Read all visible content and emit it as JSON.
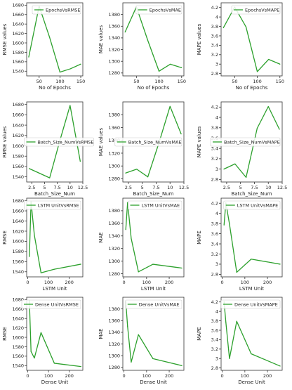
{
  "colors": {
    "line": "#2ca02c",
    "axis": "#333333",
    "background": "#ffffff"
  },
  "chart_data": [
    {
      "type": "line",
      "legend": "EpochsVsRMSE",
      "legend_position": "top-right",
      "xlabel": "No of Epochs",
      "ylabel": "RMSE values",
      "x": [
        25,
        50,
        75,
        100,
        125,
        150
      ],
      "y": [
        1570,
        1678,
        1612,
        1538,
        1545,
        1555
      ],
      "xlim": [
        20,
        155
      ],
      "ylim": [
        1530,
        1685
      ],
      "xticks": [
        50,
        100,
        150
      ],
      "yticks": [
        1540,
        1560,
        1580,
        1600,
        1620,
        1640,
        1660,
        1680
      ]
    },
    {
      "type": "line",
      "legend": "EpochsVsMAE",
      "legend_position": "top-right",
      "xlabel": "No of Epochs",
      "ylabel": "MAE values",
      "x": [
        25,
        50,
        75,
        100,
        125,
        150
      ],
      "y": [
        1350,
        1393,
        1336,
        1283,
        1295,
        1289
      ],
      "xlim": [
        20,
        155
      ],
      "ylim": [
        1275,
        1400
      ],
      "xticks": [
        50,
        100,
        150
      ],
      "yticks": [
        1280,
        1300,
        1320,
        1340,
        1360,
        1380
      ]
    },
    {
      "type": "line",
      "legend": "EpochsVsMAPE",
      "legend_position": "top-right",
      "xlabel": "No of Epochs",
      "ylabel": "MAPE values",
      "x": [
        25,
        50,
        75,
        100,
        125,
        150
      ],
      "y": [
        3.77,
        4.21,
        3.79,
        2.84,
        3.1,
        3.0
      ],
      "xlim": [
        20,
        155
      ],
      "ylim": [
        2.75,
        4.3
      ],
      "xticks": [
        50,
        100,
        150
      ],
      "yticks": [
        2.8,
        3.0,
        3.2,
        3.4,
        3.6,
        3.8,
        4.0,
        4.2
      ]
    },
    {
      "type": "line",
      "legend": "Batch_Size_NumVsRMSE",
      "legend_position": "center",
      "xlabel": "Batch_Size_Num",
      "ylabel": "RMSE values",
      "x": [
        2,
        4,
        6,
        8,
        10,
        12
      ],
      "y": [
        1556,
        1547,
        1538,
        1610,
        1678,
        1570
      ],
      "xlim": [
        1.5,
        12.5
      ],
      "ylim": [
        1530,
        1685
      ],
      "xticks": [
        2.5,
        5.0,
        7.5,
        10.0,
        12.5
      ],
      "yticks": [
        1540,
        1560,
        1580,
        1600,
        1620,
        1640,
        1660,
        1680
      ]
    },
    {
      "type": "line",
      "legend": "Batch_Size_NumVsMAE",
      "legend_position": "center-right",
      "xlabel": "Batch_Size_Num",
      "ylabel": "MAE values",
      "x": [
        2,
        4,
        6,
        8,
        10,
        12
      ],
      "y": [
        1289,
        1295,
        1283,
        1336,
        1393,
        1350
      ],
      "xlim": [
        1.5,
        12.5
      ],
      "ylim": [
        1275,
        1400
      ],
      "xticks": [
        2.5,
        5.0,
        7.5,
        10.0,
        12.5
      ],
      "yticks": [
        1280,
        1300,
        1320,
        1340,
        1360,
        1380
      ]
    },
    {
      "type": "line",
      "legend": "Batch_Size_NumVsMAPE",
      "legend_position": "center-right",
      "xlabel": "Batch_Size_Num",
      "ylabel": "MAPE values",
      "x": [
        2,
        4,
        6,
        8,
        10,
        12
      ],
      "y": [
        3.0,
        3.1,
        2.84,
        3.79,
        4.21,
        3.77
      ],
      "xlim": [
        1.5,
        12.5
      ],
      "ylim": [
        2.75,
        4.3
      ],
      "xticks": [
        2.5,
        5.0,
        7.5,
        10.0,
        12.5
      ],
      "yticks": [
        2.8,
        3.0,
        3.2,
        3.4,
        3.6,
        3.8,
        4.0,
        4.2
      ]
    },
    {
      "type": "line",
      "legend": "LSTM UnitVsRMSE",
      "legend_position": "top-right",
      "xlabel": "LSTM Unit",
      "ylabel": "RMSE",
      "x": [
        8,
        16,
        32,
        64,
        128,
        256
      ],
      "y": [
        1570,
        1678,
        1612,
        1538,
        1545,
        1555
      ],
      "xlim": [
        -5,
        265
      ],
      "ylim": [
        1530,
        1685
      ],
      "xticks": [
        0,
        100,
        200
      ],
      "yticks": [
        1540,
        1560,
        1580,
        1600,
        1620,
        1640,
        1660,
        1680
      ]
    },
    {
      "type": "line",
      "legend": "LSTM UnitVsMAE",
      "legend_position": "top-right",
      "xlabel": "LSTM Unit",
      "ylabel": "MAE",
      "x": [
        8,
        16,
        32,
        64,
        128,
        256
      ],
      "y": [
        1350,
        1393,
        1336,
        1283,
        1295,
        1289
      ],
      "xlim": [
        -5,
        265
      ],
      "ylim": [
        1275,
        1400
      ],
      "xticks": [
        0,
        100,
        200
      ],
      "yticks": [
        1280,
        1300,
        1320,
        1340,
        1360,
        1380
      ]
    },
    {
      "type": "line",
      "legend": "LSTM UnitVsMAPE",
      "legend_position": "top-right",
      "xlabel": "LSTM Unit",
      "ylabel": "MAPE",
      "x": [
        8,
        16,
        32,
        64,
        128,
        256
      ],
      "y": [
        3.77,
        4.21,
        3.79,
        2.84,
        3.1,
        3.0
      ],
      "xlim": [
        -5,
        265
      ],
      "ylim": [
        2.75,
        4.3
      ],
      "xticks": [
        0,
        100,
        200
      ],
      "yticks": [
        2.8,
        3.0,
        3.2,
        3.4,
        3.6,
        3.8,
        4.0,
        4.2
      ]
    },
    {
      "type": "line",
      "legend": "Dense UnitVsRMSE",
      "legend_position": "top-right",
      "xlabel": "Dense Unit",
      "ylabel": "RMSE",
      "x": [
        8,
        16,
        32,
        64,
        128,
        256
      ],
      "y": [
        1678,
        1570,
        1556,
        1610,
        1545,
        1538
      ],
      "xlim": [
        -5,
        265
      ],
      "ylim": [
        1530,
        1685
      ],
      "xticks": [
        0,
        100,
        200
      ],
      "yticks": [
        1540,
        1560,
        1580,
        1600,
        1620,
        1640,
        1660,
        1680
      ]
    },
    {
      "type": "line",
      "legend": "Dense UnitVsMAE",
      "legend_position": "top-right",
      "xlabel": "Dense Unit",
      "ylabel": "MAE",
      "x": [
        8,
        16,
        32,
        64,
        128,
        256
      ],
      "y": [
        1393,
        1350,
        1289,
        1336,
        1295,
        1283
      ],
      "xlim": [
        -5,
        265
      ],
      "ylim": [
        1275,
        1400
      ],
      "xticks": [
        0,
        100,
        200
      ],
      "yticks": [
        1280,
        1300,
        1320,
        1340,
        1360,
        1380
      ]
    },
    {
      "type": "line",
      "legend": "Dense UnitVsMAPE",
      "legend_position": "top-right",
      "xlabel": "Dense Unit",
      "ylabel": "MAPE",
      "x": [
        8,
        16,
        32,
        64,
        128,
        256
      ],
      "y": [
        4.21,
        3.77,
        3.0,
        3.79,
        3.1,
        2.84
      ],
      "xlim": [
        -5,
        265
      ],
      "ylim": [
        2.75,
        4.3
      ],
      "xticks": [
        0,
        100,
        200
      ],
      "yticks": [
        2.8,
        3.0,
        3.2,
        3.4,
        3.6,
        3.8,
        4.0,
        4.2
      ]
    }
  ]
}
